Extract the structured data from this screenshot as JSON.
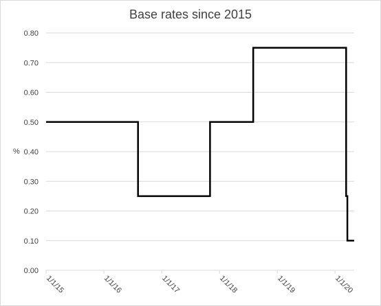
{
  "chart_data": {
    "type": "line",
    "title": "Base rates since 2015",
    "xlabel": "",
    "ylabel": "%",
    "ylim": [
      0.0,
      0.8
    ],
    "yticks": [
      "0.00",
      "0.10",
      "0.20",
      "0.30",
      "0.40",
      "0.50",
      "0.60",
      "0.70",
      "0.80"
    ],
    "xticks": [
      "1/1/15",
      "1/1/16",
      "1/1/17",
      "1/1/18",
      "1/1/19",
      "1/1/20"
    ],
    "x_start": "1/1/15",
    "x_end": "5/1/20",
    "grid": true,
    "line_color": "#000000",
    "series": [
      {
        "name": "",
        "points": [
          {
            "x": "1/1/15",
            "y": 0.5
          },
          {
            "x": "8/4/16",
            "y": 0.5
          },
          {
            "x": "8/4/16",
            "y": 0.25
          },
          {
            "x": "11/2/17",
            "y": 0.25
          },
          {
            "x": "11/2/17",
            "y": 0.5
          },
          {
            "x": "8/2/18",
            "y": 0.5
          },
          {
            "x": "8/2/18",
            "y": 0.75
          },
          {
            "x": "3/11/20",
            "y": 0.75
          },
          {
            "x": "3/11/20",
            "y": 0.25
          },
          {
            "x": "3/19/20",
            "y": 0.25
          },
          {
            "x": "3/19/20",
            "y": 0.1
          },
          {
            "x": "5/1/20",
            "y": 0.1
          }
        ]
      }
    ]
  }
}
